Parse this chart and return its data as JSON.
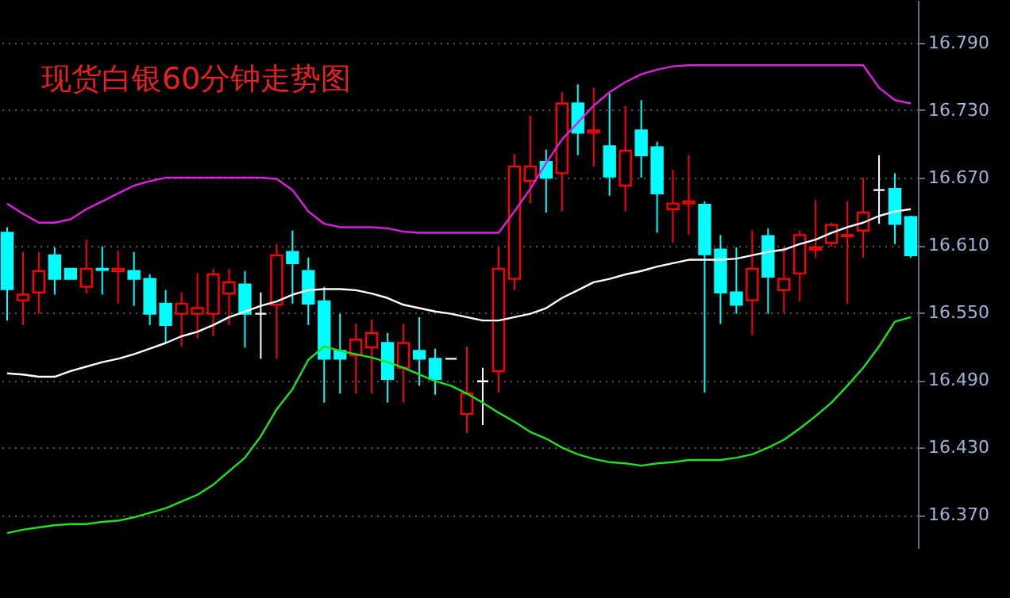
{
  "chart_data": {
    "type": "candlestick",
    "title": "现货白银60分钟走势图",
    "categories": [
      null,
      null,
      null,
      null,
      null,
      null,
      null,
      null,
      null,
      null,
      null,
      null,
      null,
      null,
      null,
      null,
      null,
      null,
      null,
      null,
      null,
      null,
      null,
      null,
      null,
      null,
      null,
      null,
      null,
      null,
      null,
      null,
      null,
      null,
      null,
      null,
      null,
      null,
      null,
      null,
      null,
      null,
      null,
      null,
      null,
      null,
      null,
      null,
      null,
      null,
      null,
      null,
      null,
      null,
      null,
      null,
      null,
      null
    ],
    "ohlc": [
      [
        16.621,
        16.626,
        16.543,
        16.571
      ],
      [
        16.561,
        16.604,
        16.539,
        16.566
      ],
      [
        16.568,
        16.604,
        16.549,
        16.587
      ],
      [
        16.601,
        16.608,
        16.566,
        16.58
      ],
      [
        16.589,
        16.589,
        16.58,
        16.58
      ],
      [
        16.573,
        16.615,
        16.567,
        16.589
      ],
      [
        16.589,
        16.609,
        16.566,
        16.588
      ],
      [
        16.587,
        16.605,
        16.558,
        16.589
      ],
      [
        16.587,
        16.604,
        16.556,
        16.58
      ],
      [
        16.58,
        16.584,
        16.539,
        16.549
      ],
      [
        16.558,
        16.57,
        16.523,
        16.539
      ],
      [
        16.549,
        16.568,
        16.52,
        16.558
      ],
      [
        16.549,
        16.585,
        16.527,
        16.554
      ],
      [
        16.549,
        16.589,
        16.529,
        16.584
      ],
      [
        16.567,
        16.589,
        16.539,
        16.577
      ],
      [
        16.575,
        16.587,
        16.519,
        16.549
      ],
      [
        16.549,
        16.568,
        16.509,
        16.549
      ],
      [
        16.557,
        16.611,
        16.509,
        16.601
      ],
      [
        16.604,
        16.623,
        16.558,
        16.594
      ],
      [
        16.587,
        16.599,
        16.539,
        16.558
      ],
      [
        16.56,
        16.573,
        16.47,
        16.509
      ],
      [
        16.516,
        16.549,
        16.478,
        16.509
      ],
      [
        16.512,
        16.54,
        16.478,
        16.526
      ],
      [
        16.519,
        16.544,
        16.478,
        16.532
      ],
      [
        16.523,
        16.532,
        16.47,
        16.491
      ],
      [
        16.501,
        16.54,
        16.47,
        16.523
      ],
      [
        16.516,
        16.546,
        16.485,
        16.509
      ],
      [
        16.509,
        16.518,
        16.477,
        16.491
      ],
      [
        16.509,
        16.509,
        16.509,
        16.509
      ],
      [
        16.46,
        16.52,
        16.443,
        16.478
      ],
      [
        16.489,
        16.501,
        16.45,
        16.489
      ],
      [
        16.498,
        16.608,
        16.479,
        16.589
      ],
      [
        16.58,
        16.691,
        16.57,
        16.68
      ],
      [
        16.667,
        16.725,
        16.647,
        16.68
      ],
      [
        16.684,
        16.695,
        16.639,
        16.67
      ],
      [
        16.674,
        16.746,
        16.64,
        16.736
      ],
      [
        16.736,
        16.753,
        16.69,
        16.71
      ],
      [
        16.71,
        16.75,
        16.68,
        16.712
      ],
      [
        16.698,
        16.745,
        16.654,
        16.671
      ],
      [
        16.663,
        16.734,
        16.64,
        16.694
      ],
      [
        16.712,
        16.739,
        16.67,
        16.69
      ],
      [
        16.697,
        16.702,
        16.621,
        16.656
      ],
      [
        16.642,
        16.677,
        16.612,
        16.647
      ],
      [
        16.647,
        16.69,
        16.619,
        16.649
      ],
      [
        16.646,
        16.649,
        16.479,
        16.602
      ],
      [
        16.606,
        16.619,
        16.54,
        16.568
      ],
      [
        16.568,
        16.608,
        16.549,
        16.557
      ],
      [
        16.561,
        16.623,
        16.53,
        16.589
      ],
      [
        16.618,
        16.625,
        16.549,
        16.582
      ],
      [
        16.57,
        16.608,
        16.55,
        16.58
      ],
      [
        16.585,
        16.623,
        16.56,
        16.619
      ],
      [
        16.606,
        16.65,
        16.599,
        16.608
      ],
      [
        16.612,
        16.63,
        16.609,
        16.628
      ],
      [
        16.618,
        16.649,
        16.558,
        16.619
      ],
      [
        16.623,
        16.67,
        16.599,
        16.639
      ],
      [
        16.659,
        16.69,
        16.629,
        16.659
      ],
      [
        16.66,
        16.674,
        16.611,
        16.629
      ],
      [
        16.635,
        16.636,
        16.599,
        16.601
      ]
    ],
    "colors": [
      "#00ffff",
      "#ff0000",
      "#ff0000",
      "#00ffff",
      "#00ffff",
      "#ff0000",
      "#00ffff",
      "#ff0000",
      "#00ffff",
      "#00ffff",
      "#00ffff",
      "#ff0000",
      "#ff0000",
      "#ff0000",
      "#ff0000",
      "#00ffff",
      "#ffffff",
      "#ff0000",
      "#00ffff",
      "#00ffff",
      "#00ffff",
      "#00ffff",
      "#ff0000",
      "#ff0000",
      "#00ffff",
      "#ff0000",
      "#00ffff",
      "#00ffff",
      "#ffffff",
      "#ff0000",
      "#ffffff",
      "#ff0000",
      "#ff0000",
      "#ff0000",
      "#00ffff",
      "#ff0000",
      "#00ffff",
      "#ff0000",
      "#00ffff",
      "#ff0000",
      "#00ffff",
      "#00ffff",
      "#ff0000",
      "#ff0000",
      "#00ffff",
      "#00ffff",
      "#00ffff",
      "#ff0000",
      "#00ffff",
      "#ff0000",
      "#ff0000",
      "#ff0000",
      "#ff0000",
      "#ff0000",
      "#ff0000",
      "#ffffff",
      "#00ffff",
      "#00ffff"
    ],
    "series": [
      {
        "type": "line",
        "color": "#e020e0",
        "values": [
          16.647,
          16.638,
          16.63,
          16.63,
          16.633,
          16.642,
          16.649,
          16.656,
          16.663,
          16.667,
          16.67,
          16.67,
          16.67,
          16.67,
          16.67,
          16.67,
          16.67,
          16.669,
          16.659,
          16.64,
          16.629,
          16.626,
          16.626,
          16.626,
          16.625,
          16.622,
          16.621,
          16.621,
          16.621,
          16.621,
          16.621,
          16.621,
          16.64,
          16.66,
          16.683,
          16.704,
          16.719,
          16.734,
          16.746,
          16.755,
          16.762,
          16.766,
          16.769,
          16.77,
          16.77,
          16.77,
          16.77,
          16.77,
          16.77,
          16.77,
          16.77,
          16.77,
          16.77,
          16.77,
          16.77,
          16.75,
          16.739,
          16.736
        ]
      },
      {
        "type": "line",
        "color": "#ffffff",
        "values": [
          16.496,
          16.495,
          16.493,
          16.493,
          16.498,
          16.502,
          16.506,
          16.509,
          16.513,
          16.518,
          16.523,
          16.529,
          16.533,
          16.539,
          16.546,
          16.551,
          16.556,
          16.56,
          16.566,
          16.57,
          16.571,
          16.571,
          16.57,
          16.567,
          16.563,
          16.557,
          16.554,
          16.551,
          16.549,
          16.546,
          16.543,
          16.543,
          16.546,
          16.549,
          16.554,
          16.563,
          16.57,
          16.577,
          16.58,
          16.584,
          16.587,
          16.591,
          16.594,
          16.597,
          16.597,
          16.597,
          16.598,
          16.601,
          16.604,
          16.606,
          16.611,
          16.615,
          16.621,
          16.626,
          16.63,
          16.636,
          16.64,
          16.642
        ]
      },
      {
        "type": "line",
        "color": "#20e020",
        "values": [
          16.354,
          16.357,
          16.359,
          16.361,
          16.362,
          16.362,
          16.364,
          16.365,
          16.368,
          16.372,
          16.376,
          16.382,
          16.388,
          16.397,
          16.409,
          16.421,
          16.44,
          16.464,
          16.482,
          16.508,
          16.52,
          16.516,
          16.513,
          16.51,
          16.506,
          16.501,
          16.495,
          16.489,
          16.485,
          16.478,
          16.47,
          16.461,
          16.453,
          16.444,
          16.438,
          16.43,
          16.424,
          16.42,
          16.417,
          16.416,
          16.414,
          16.416,
          16.417,
          16.419,
          16.419,
          16.419,
          16.421,
          16.424,
          16.43,
          16.437,
          16.447,
          16.458,
          16.47,
          16.485,
          16.501,
          16.52,
          16.542,
          16.546
        ]
      }
    ],
    "ylim": [
      16.34,
      16.828
    ],
    "yticks": [
      {
        "value": 16.37,
        "label": "16.370"
      },
      {
        "value": 16.43,
        "label": "16.430"
      },
      {
        "value": 16.49,
        "label": "16.490"
      },
      {
        "value": 16.55,
        "label": "16.550"
      },
      {
        "value": 16.61,
        "label": "16.610"
      },
      {
        "value": 16.67,
        "label": "16.670"
      },
      {
        "value": 16.73,
        "label": "16.730"
      },
      {
        "value": 16.79,
        "label": "16.790"
      }
    ],
    "grid": "y",
    "tick_labels": "y"
  }
}
